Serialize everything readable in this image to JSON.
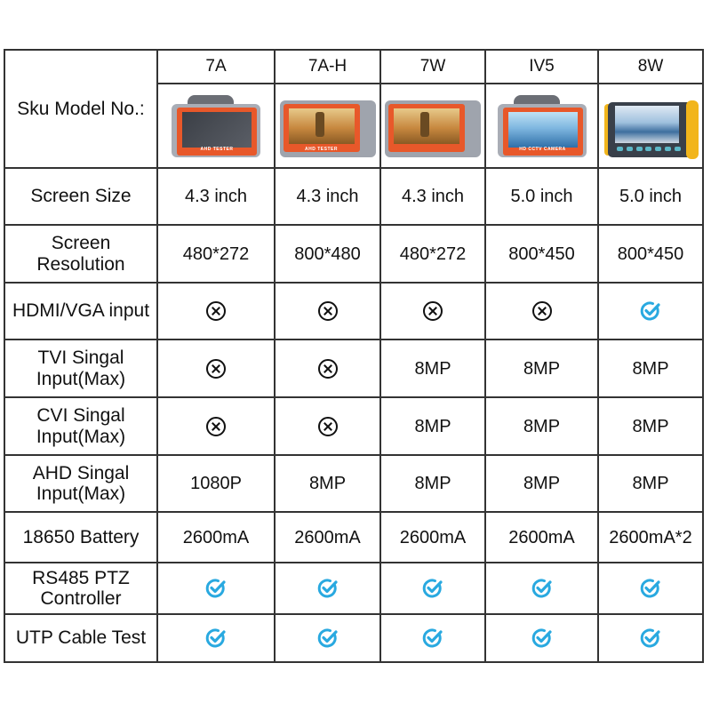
{
  "table": {
    "header_label": "Sku Model No.:",
    "models": [
      {
        "name": "7A",
        "image": {
          "style": "strap-dark",
          "label": "AHD TESTER"
        }
      },
      {
        "name": "7A-H",
        "image": {
          "style": "tree",
          "label": "AHD TESTER"
        }
      },
      {
        "name": "7W",
        "image": {
          "style": "tree",
          "label": ""
        }
      },
      {
        "name": "IV5",
        "image": {
          "style": "strap-sea",
          "label": "HD CCTV CAMERA"
        }
      },
      {
        "name": "8W",
        "image": {
          "style": "yellow-bumper",
          "label": ""
        }
      }
    ],
    "rows": [
      {
        "label": "Screen Size",
        "values": [
          "4.3 inch",
          "4.3 inch",
          "4.3 inch",
          "5.0 inch",
          "5.0 inch"
        ]
      },
      {
        "label": "Screen Resolution",
        "label_lines": [
          "Screen",
          "Resolution"
        ],
        "values": [
          "480*272",
          "800*480",
          "480*272",
          "800*450",
          "800*450"
        ]
      },
      {
        "label": "HDMI/VGA input",
        "values": [
          "x-circle-icon",
          "x-circle-icon",
          "x-circle-icon",
          "x-circle-icon",
          "check-circle-icon"
        ]
      },
      {
        "label": "TVI Singal Input(Max)",
        "label_lines": [
          "TVI Singal",
          "Input(Max)"
        ],
        "values": [
          "x-circle-icon",
          "x-circle-icon",
          "8MP",
          "8MP",
          "8MP"
        ]
      },
      {
        "label": "CVI Singal Input(Max)",
        "label_lines": [
          "CVI Singal",
          "Input(Max)"
        ],
        "values": [
          "x-circle-icon",
          "x-circle-icon",
          "8MP",
          "8MP",
          "8MP"
        ]
      },
      {
        "label": "AHD Singal Input(Max)",
        "label_lines": [
          "AHD Singal",
          "Input(Max)"
        ],
        "values": [
          "1080P",
          "8MP",
          "8MP",
          "8MP",
          "8MP"
        ]
      },
      {
        "label": "18650 Battery",
        "values": [
          "2600mA",
          "2600mA",
          "2600mA",
          "2600mA",
          "2600mA*2"
        ]
      },
      {
        "label": "RS485 PTZ Controller",
        "label_lines": [
          "RS485 PTZ",
          "Controller"
        ],
        "values": [
          "check-circle-icon",
          "check-circle-icon",
          "check-circle-icon",
          "check-circle-icon",
          "check-circle-icon"
        ]
      },
      {
        "label": "UTP Cable Test",
        "values": [
          "check-circle-icon",
          "check-circle-icon",
          "check-circle-icon",
          "check-circle-icon",
          "check-circle-icon"
        ]
      }
    ]
  },
  "colors": {
    "border": "#333333",
    "check_icon": "#29a9e0",
    "x_icon": "#111111",
    "device_orange": "#e8582a",
    "device_yellow": "#f2b51b"
  }
}
